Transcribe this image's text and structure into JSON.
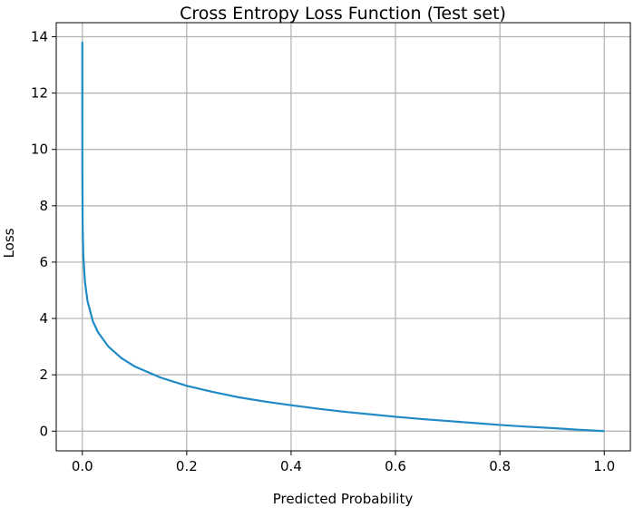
{
  "chart_data": {
    "type": "line",
    "title": "Cross Entropy Loss Function (Test set)",
    "xlabel": "Predicted Probability",
    "ylabel": "Loss",
    "xlim": [
      -0.05,
      1.05
    ],
    "ylim": [
      -0.7,
      14.5
    ],
    "xticks": [
      0.0,
      0.2,
      0.4,
      0.6,
      0.8,
      1.0
    ],
    "xtick_labels": [
      "0.0",
      "0.2",
      "0.4",
      "0.6",
      "0.8",
      "1.0"
    ],
    "yticks": [
      0,
      2,
      4,
      6,
      8,
      10,
      12,
      14
    ],
    "ytick_labels": [
      "0",
      "2",
      "4",
      "6",
      "8",
      "10",
      "12",
      "14"
    ],
    "grid": true,
    "series": [
      {
        "color": "#1f8ac6",
        "x": [
          1e-06,
          1e-05,
          0.0001,
          0.0005,
          0.001,
          0.002,
          0.005,
          0.01,
          0.02,
          0.03,
          0.05,
          0.075,
          0.1,
          0.15,
          0.2,
          0.25,
          0.3,
          0.35,
          0.4,
          0.45,
          0.5,
          0.55,
          0.6,
          0.65,
          0.7,
          0.75,
          0.8,
          0.85,
          0.9,
          0.95,
          0.999999
        ],
        "y": [
          13.82,
          11.51,
          9.21,
          7.6,
          6.91,
          6.21,
          5.3,
          4.61,
          3.91,
          3.51,
          3.0,
          2.59,
          2.3,
          1.9,
          1.61,
          1.39,
          1.2,
          1.05,
          0.92,
          0.8,
          0.69,
          0.6,
          0.51,
          0.43,
          0.36,
          0.29,
          0.22,
          0.16,
          0.11,
          0.05,
          0.0
        ]
      }
    ]
  }
}
